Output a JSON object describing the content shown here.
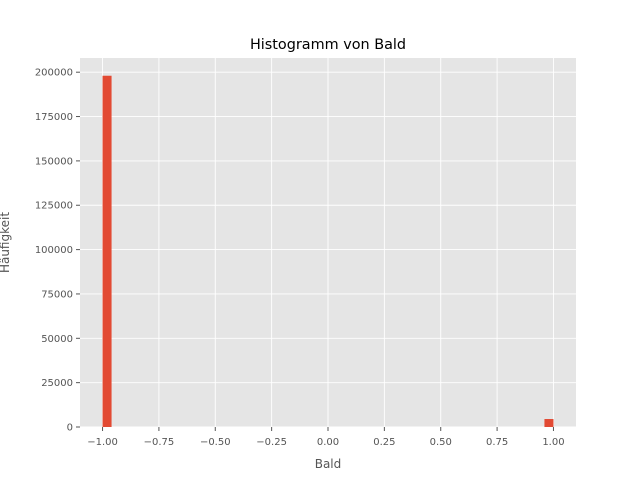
{
  "chart_data": {
    "type": "bar",
    "title": "Histogramm von Bald",
    "xlabel": "Bald",
    "ylabel": "Häufigkeit",
    "xlim": [
      -1.1,
      1.1
    ],
    "ylim": [
      0,
      208000
    ],
    "xticks": [
      -1.0,
      -0.75,
      -0.5,
      -0.25,
      0.0,
      0.25,
      0.5,
      0.75,
      1.0
    ],
    "xtick_labels": [
      "−1.00",
      "−0.75",
      "−0.50",
      "−0.25",
      "0.00",
      "0.25",
      "0.50",
      "0.75",
      "1.00"
    ],
    "yticks": [
      0,
      25000,
      50000,
      75000,
      100000,
      125000,
      150000,
      175000,
      200000
    ],
    "ytick_labels": [
      "0",
      "25000",
      "50000",
      "75000",
      "100000",
      "125000",
      "150000",
      "175000",
      "200000"
    ],
    "bins": 50,
    "bin_range": [
      -1.0,
      1.0
    ],
    "bars": [
      {
        "x0": -1.0,
        "x1": -0.96,
        "value": 198000
      },
      {
        "x0": 0.96,
        "x1": 1.0,
        "value": 4500
      }
    ],
    "grid": true,
    "bar_color": "#E24A33",
    "background_color": "#E5E5E5",
    "grid_color": "#FFFFFF"
  }
}
